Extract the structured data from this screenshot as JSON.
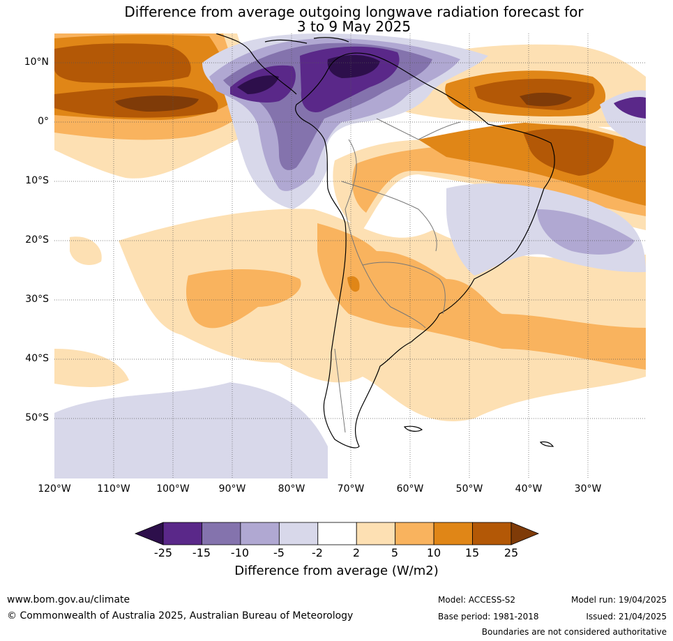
{
  "title": {
    "line1": "Difference from average outgoing longwave radiation forecast for",
    "line2": "3 to 9 May 2025"
  },
  "map": {
    "lat_labels": [
      "10°N",
      "0°",
      "10°S",
      "20°S",
      "30°S",
      "40°S",
      "50°S"
    ],
    "lon_labels": [
      "120°W",
      "110°W",
      "100°W",
      "90°W",
      "80°W",
      "70°W",
      "60°W",
      "50°W",
      "40°W",
      "30°W"
    ],
    "lon_range": [
      -120,
      -20
    ],
    "lat_range": [
      -60,
      15
    ]
  },
  "colorbar": {
    "ticks": [
      "-25",
      "-15",
      "-10",
      "-5",
      "-2",
      "2",
      "5",
      "10",
      "15",
      "25"
    ],
    "colors": [
      "#2d0f4b",
      "#5a2889",
      "#8473ad",
      "#b0a8d2",
      "#d8d8ea",
      "#ffffff",
      "#fde0b3",
      "#f9b35e",
      "#e08617",
      "#b35806",
      "#7f3b08"
    ],
    "label": "Difference from average (W/m2)"
  },
  "footer": {
    "url": "www.bom.gov.au/climate",
    "copyright": "© Commonwealth of Australia 2025, Australian Bureau of Meteorology",
    "model": "Model: ACCESS-S2",
    "base_period": "Base period: 1981-2018",
    "model_run": "Model run: 19/04/2025",
    "issued": "Issued: 21/04/2025",
    "disclaimer": "Boundaries are not considered authoritative"
  }
}
